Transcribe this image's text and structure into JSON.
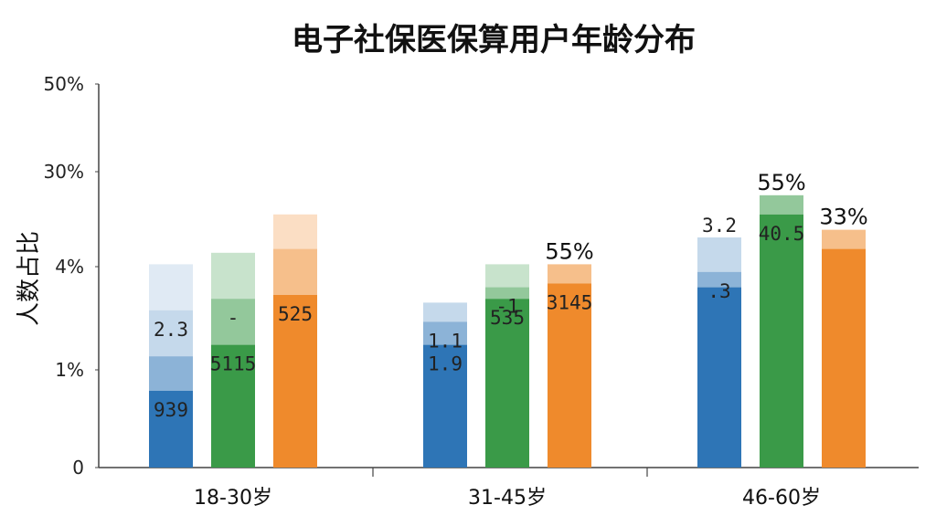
{
  "chart_data": {
    "type": "bar",
    "title": "电子社保医保算用户年龄分布",
    "ylabel": "人数占比",
    "xlabel": "",
    "y_ticks": [
      "0",
      "1%",
      "4%",
      "30%",
      "50%"
    ],
    "categories": [
      "18-30岁",
      "31-45岁",
      "46-60岁"
    ],
    "colors": {
      "blue": "#2e75b6",
      "green": "#3a9a48",
      "orange": "#ef8a2c",
      "axis": "#444444"
    },
    "groups": [
      {
        "category": "18-30岁",
        "bars": [
          {
            "color": "blue",
            "segments": [
              0.2,
              0.09,
              0.12,
              0.12
            ],
            "labels": [
              "939",
              "",
              "2.3"
            ]
          },
          {
            "color": "green",
            "segments": [
              0.32,
              0.12,
              0.12
            ],
            "labels": [
              "5115",
              "-"
            ]
          },
          {
            "color": "orange",
            "segments": [
              0.45,
              0.12,
              0.09
            ],
            "labels": [
              "525"
            ]
          }
        ]
      },
      {
        "category": "31-45岁",
        "bars": [
          {
            "color": "blue",
            "segments": [
              0.32,
              0.06,
              0.05
            ],
            "labels": [
              "1.9",
              "1.1"
            ]
          },
          {
            "color": "green",
            "segments": [
              0.44,
              0.03,
              0.06
            ],
            "labels": [
              "535",
              "-1"
            ]
          },
          {
            "color": "orange",
            "segments": [
              0.48,
              0.05
            ],
            "labels": [
              "3145",
              "55%"
            ]
          }
        ]
      },
      {
        "category": "46-60岁",
        "bars": [
          {
            "color": "blue",
            "segments": [
              0.47,
              0.04,
              0.09
            ],
            "labels": [
              "",
              ".3",
              "3.2"
            ]
          },
          {
            "color": "green",
            "segments": [
              0.66,
              0.05
            ],
            "labels": [
              "40.5",
              "55%"
            ]
          },
          {
            "color": "orange",
            "segments": [
              0.57,
              0.05
            ],
            "labels": [
              "",
              "33%"
            ]
          }
        ]
      }
    ]
  }
}
